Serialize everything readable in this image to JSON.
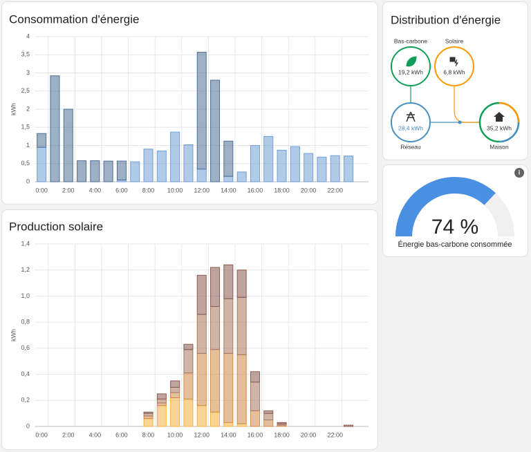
{
  "chart_data": [
    {
      "type": "bar",
      "stacked": true,
      "title": "Consommation d'énergie",
      "y_label": "kWh",
      "categories": [
        "0:00",
        null,
        "2:00",
        null,
        "4:00",
        null,
        "6:00",
        null,
        "8:00",
        null,
        "10:00",
        null,
        "12:00",
        null,
        "14:00",
        null,
        "16:00",
        null,
        "18:00",
        null,
        "20:00",
        null,
        "22:00",
        null
      ],
      "series": [
        {
          "color": "#6f9fd6",
          "values": [
            0.95,
            0,
            0,
            0,
            0,
            0,
            0.05,
            0.55,
            0.9,
            0.85,
            1.37,
            1.02,
            0.35,
            0,
            0.15,
            0.27,
            1.0,
            1.25,
            0.87,
            0.97,
            0.78,
            0.68,
            0.72,
            0.71
          ]
        },
        {
          "color": "#4d6f94",
          "values": [
            0.38,
            2.92,
            2.0,
            0.58,
            0.58,
            0.57,
            0.52,
            0,
            0,
            0,
            0,
            0,
            3.22,
            2.8,
            0.97,
            0,
            0,
            0,
            0,
            0,
            0,
            0,
            0,
            0
          ]
        }
      ],
      "ylim": [
        0,
        4
      ],
      "yticks": [
        0,
        {
          "value": 0.5,
          "label": "0,5"
        },
        1,
        {
          "value": 1.5,
          "label": "1,5"
        },
        2,
        {
          "value": 2.5,
          "label": "2,5"
        },
        3,
        {
          "value": 3.5,
          "label": "3,5"
        },
        4
      ],
      "grid": true
    },
    {
      "type": "bar",
      "stacked": true,
      "title": "Production solaire",
      "y_label": "kWh",
      "categories": [
        "0:00",
        null,
        "2:00",
        null,
        "4:00",
        null,
        "6:00",
        null,
        "8:00",
        null,
        "10:00",
        null,
        "12:00",
        null,
        "14:00",
        null,
        "16:00",
        null,
        "18:00",
        null,
        "20:00",
        null,
        "22:00",
        null
      ],
      "series": [
        {
          "color": "#f3b23e",
          "values": [
            0,
            0,
            0,
            0,
            0,
            0,
            0,
            0,
            0.06,
            0.16,
            0.22,
            0.21,
            0.16,
            0.11,
            0.03,
            0.02,
            0,
            0,
            0,
            0,
            0,
            0,
            0,
            0
          ]
        },
        {
          "color": "#cf8a45",
          "values": [
            0,
            0,
            0,
            0,
            0,
            0,
            0,
            0,
            0.02,
            0.02,
            0.04,
            0.2,
            0.4,
            0.48,
            0.53,
            0.53,
            0.12,
            0.05,
            0.01,
            0,
            0,
            0,
            0,
            0
          ]
        },
        {
          "color": "#a9785f",
          "values": [
            0,
            0,
            0,
            0,
            0,
            0,
            0,
            0,
            0.02,
            0.03,
            0.04,
            0.18,
            0.3,
            0.33,
            0.42,
            0.44,
            0.22,
            0.05,
            0.01,
            0,
            0,
            0,
            0,
            0
          ]
        },
        {
          "color": "#8a5a50",
          "values": [
            0,
            0,
            0,
            0,
            0,
            0,
            0,
            0,
            0.01,
            0.04,
            0.05,
            0.04,
            0.3,
            0.3,
            0.26,
            0.21,
            0.08,
            0.02,
            0.01,
            0,
            0,
            0,
            0,
            0.01
          ]
        }
      ],
      "ylim": [
        0,
        1.4
      ],
      "yticks": [
        0,
        {
          "value": 0.2,
          "label": "0,2"
        },
        {
          "value": 0.4,
          "label": "0,4"
        },
        {
          "value": 0.6,
          "label": "0,6"
        },
        {
          "value": 0.8,
          "label": "0,8"
        },
        {
          "value": 1,
          "label": "1,0"
        },
        {
          "value": 1.2,
          "label": "1,2"
        },
        {
          "value": 1.4,
          "label": "1,4"
        }
      ],
      "grid": true
    }
  ],
  "distribution": {
    "title": "Distribution d'énergie",
    "low_carbon": {
      "label": "Bas-carbone",
      "value": "19,2 kWh"
    },
    "solar": {
      "label": "Solaire",
      "value": "6,8 kWh"
    },
    "grid": {
      "label": "Réseau",
      "value": "28,4 kWh"
    },
    "home": {
      "label": "Maison",
      "value": "35,2 kWh"
    }
  },
  "gauge": {
    "value": 74,
    "value_label": "74 %",
    "label": "Énergie bas-carbone consommée",
    "color": "#4a90e2"
  }
}
